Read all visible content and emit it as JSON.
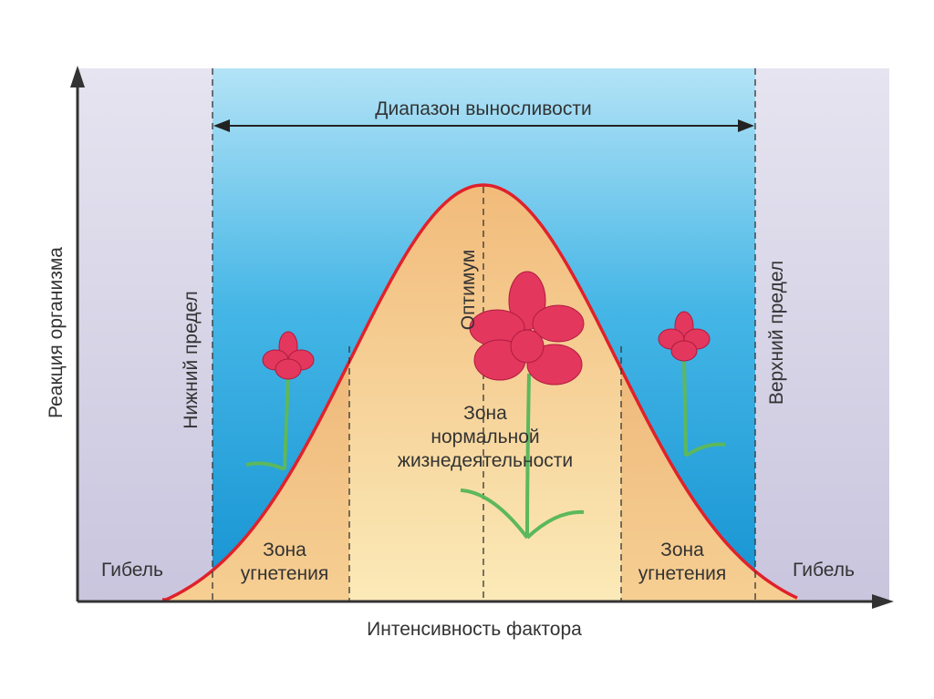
{
  "range_label": "Диапазон выносливости",
  "y_axis_label": "Реакция организма",
  "x_axis_label": "Интенсивность фактора",
  "lower_limit": "Нижний предел",
  "upper_limit": "Верхний предел",
  "optimum": "Оптимум",
  "normal_zone": [
    "Зона",
    "нормальной",
    "жизнедеятельности"
  ],
  "stress_zone_left": [
    "Зона",
    "угнетения"
  ],
  "stress_zone_right": [
    "Зона",
    "угнетения"
  ],
  "death_left": "Гибель",
  "death_right": "Гибель"
}
